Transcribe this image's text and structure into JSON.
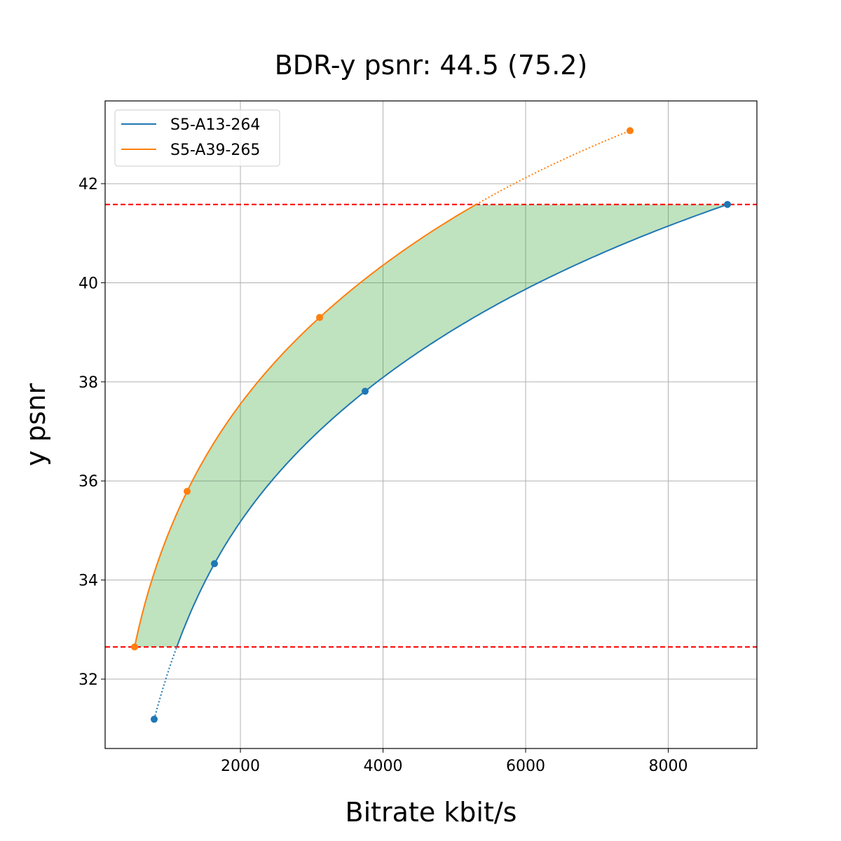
{
  "chart_data": {
    "type": "line",
    "title": "BDR-y psnr: 44.5 (75.2)",
    "xlabel": "Bitrate kbit/s",
    "ylabel": "y psnr",
    "xlim": [
      103,
      9243
    ],
    "ylim": [
      30.6,
      43.67
    ],
    "xticks": [
      2000,
      4000,
      6000,
      8000
    ],
    "yticks": [
      32,
      34,
      36,
      38,
      40,
      42
    ],
    "grid": true,
    "legend_position": "top-left",
    "series": [
      {
        "name": "S5-A13-264",
        "color": "#1f77b4",
        "x": [
          791,
          1636,
          3749,
          8830
        ],
        "y": [
          31.19,
          34.33,
          37.81,
          41.58
        ]
      },
      {
        "name": "S5-A39-265",
        "color": "#ff7f0e",
        "x": [
          516,
          1253,
          3111,
          7464
        ],
        "y": [
          32.65,
          35.79,
          39.3,
          43.07
        ]
      }
    ],
    "hlines": [
      {
        "y": 41.58,
        "color": "#ff0000",
        "style": "dashed"
      },
      {
        "y": 32.65,
        "color": "#ff0000",
        "style": "dashed"
      }
    ],
    "fill_between": {
      "color": "#2ca02c",
      "alpha": 0.3,
      "y_range": [
        32.65,
        41.58
      ]
    }
  }
}
